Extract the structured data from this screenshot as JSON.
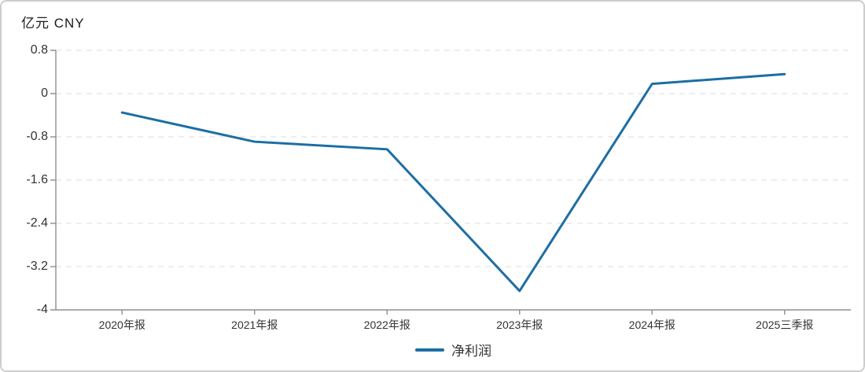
{
  "chart_data": {
    "type": "line",
    "title": "亿元 CNY",
    "categories": [
      "2020年报",
      "2021年报",
      "2022年报",
      "2023年报",
      "2024年报",
      "2025三季报"
    ],
    "series": [
      {
        "name": "净利润",
        "color": "#1c6ea4",
        "values": [
          -0.35,
          -0.89,
          -1.03,
          -3.65,
          0.18,
          0.36
        ]
      }
    ],
    "ytick_labels": [
      "0.8",
      "0",
      "-0.8",
      "-1.6",
      "-2.4",
      "-3.2",
      "-4"
    ],
    "yticks": [
      0.8,
      0,
      -0.8,
      -1.6,
      -2.4,
      -3.2,
      -4
    ],
    "ylim": [
      -4,
      0.8
    ],
    "xlabel": "",
    "ylabel": "亿元 CNY",
    "grid": "dashed-horizontal",
    "legend_position": "bottom-center"
  },
  "legend": {
    "net_profit_label": "净利润"
  },
  "colors": {
    "line": "#1c6ea4",
    "gridline": "#dedede",
    "axis": "#8f8f8f",
    "text": "#333333",
    "frame_border": "#cdcdcd"
  }
}
